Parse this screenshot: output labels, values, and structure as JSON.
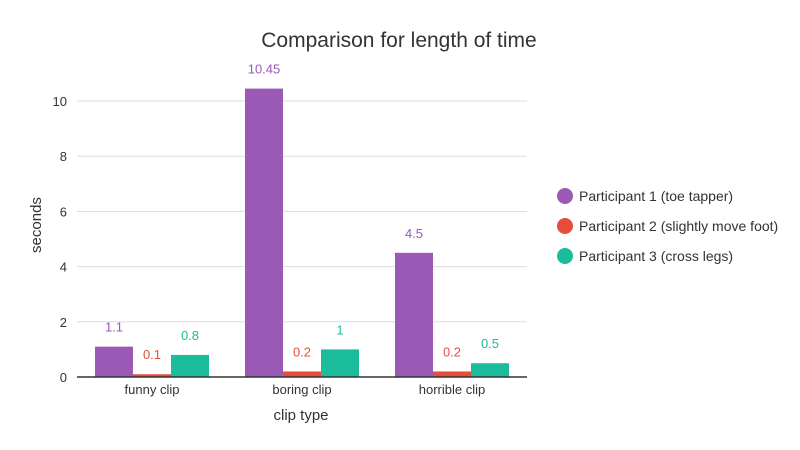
{
  "chart_data": {
    "type": "bar",
    "title": "Comparison for length of time",
    "xlabel": "clip type",
    "ylabel": "seconds",
    "categories": [
      "funny clip",
      "boring clip",
      "horrible clip"
    ],
    "series": [
      {
        "name": "Participant 1 (toe tapper)",
        "color": "#9b59b6",
        "values": [
          1.1,
          10.45,
          4.5
        ],
        "labels": [
          "1.1",
          "10.45",
          "4.5"
        ]
      },
      {
        "name": "Participant 2 (slightly move foot)",
        "color": "#e74c3c",
        "values": [
          0.1,
          0.2,
          0.2
        ],
        "labels": [
          "0.1",
          "0.2",
          "0.2"
        ]
      },
      {
        "name": "Participant 3 (cross legs)",
        "color": "#1abc9c",
        "values": [
          0.8,
          1,
          0.5
        ],
        "labels": [
          "0.8",
          "1",
          "0.5"
        ]
      }
    ],
    "ylim": [
      0,
      11
    ],
    "yticks": [
      0,
      2,
      4,
      6,
      8,
      10
    ],
    "grid": true,
    "legend_position": "right"
  }
}
